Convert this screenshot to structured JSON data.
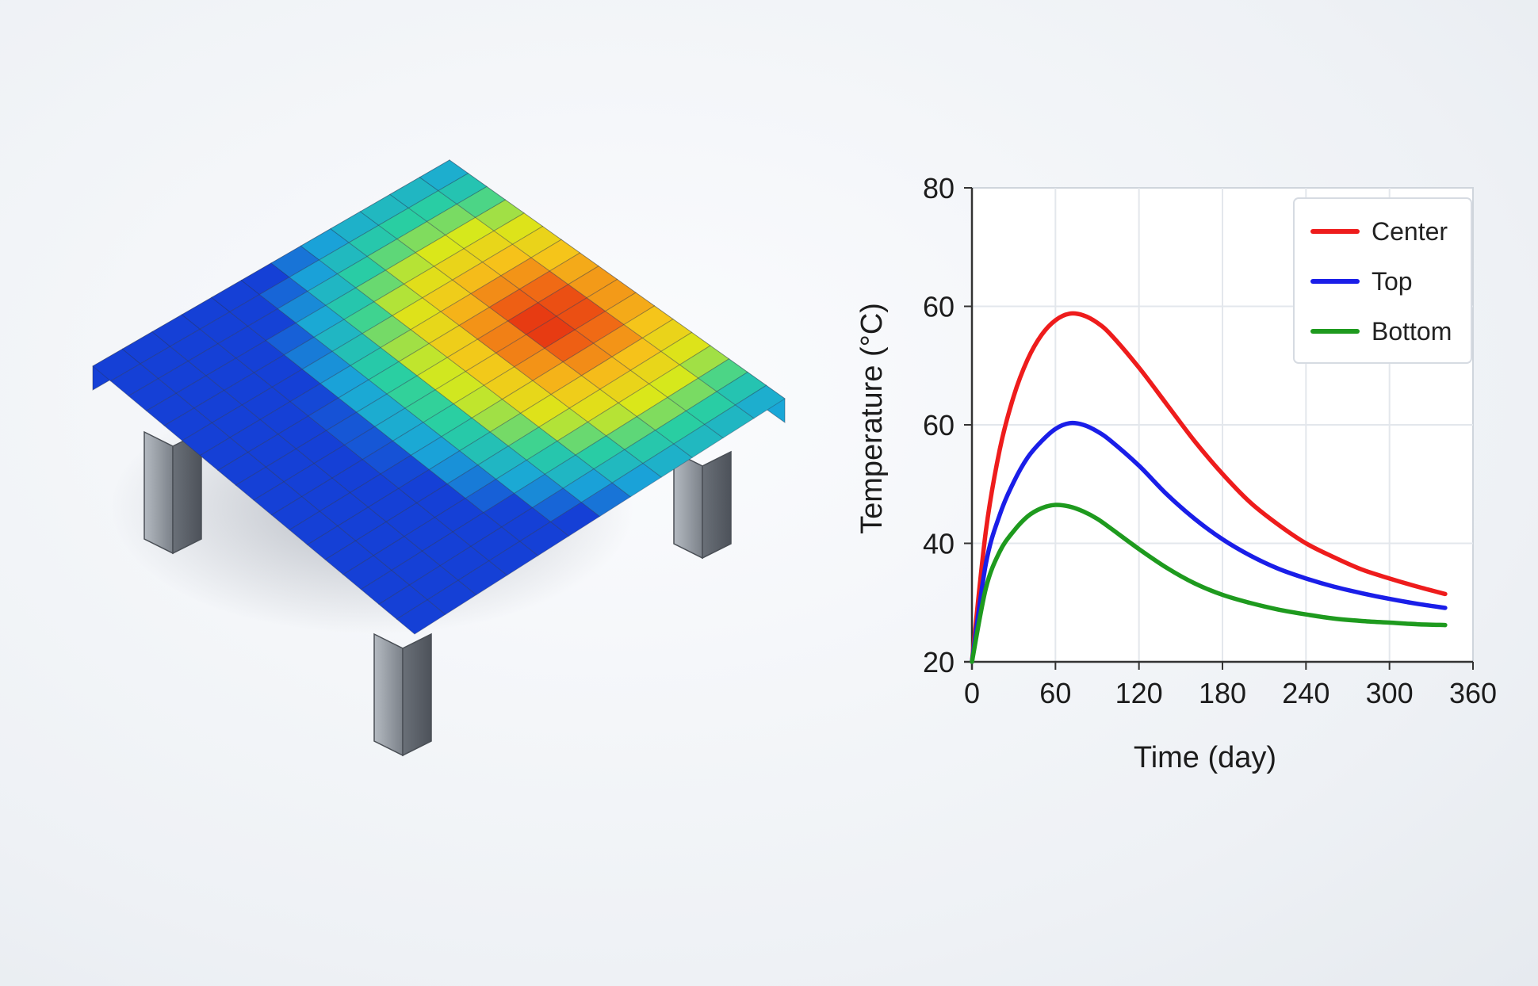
{
  "model": {
    "heat_grid": {
      "rows": 12,
      "cols": 18,
      "hot_spot": {
        "row": 0.82,
        "col": 0.5
      },
      "colormap": [
        "#1540d6",
        "#1aa6d8",
        "#2ad0a0",
        "#d9e81a",
        "#f6c41a",
        "#f06a15",
        "#e01a10"
      ]
    },
    "colors": {
      "leg": "#8e959d",
      "leg_dark": "#5e646b",
      "grid_line": "#2a3550"
    }
  },
  "chart_data": {
    "type": "line",
    "title": "",
    "xlabel": "Time (day)",
    "ylabel": "Temperature (°C)",
    "x_ticks": [
      "0",
      "60",
      "120",
      "180",
      "240",
      "300",
      "360"
    ],
    "y_ticks": [
      "20",
      "40",
      "60",
      "60",
      "80"
    ],
    "xlim": [
      0,
      360
    ],
    "grid": true,
    "legend_position": "top-right",
    "series": [
      {
        "name": "Center",
        "color": "#ee1c1c",
        "x": [
          0,
          10,
          20,
          30,
          40,
          50,
          60,
          70,
          80,
          90,
          100,
          120,
          140,
          160,
          180,
          200,
          220,
          240,
          260,
          280,
          300,
          320,
          340
        ],
        "y": [
          20,
          36,
          46,
          52.5,
          57,
          60,
          61.8,
          62.6,
          62.4,
          61.5,
          60,
          56,
          51.5,
          47,
          43,
          39.5,
          36.8,
          34.5,
          32.8,
          31.3,
          30.2,
          29.2,
          28.3
        ]
      },
      {
        "name": "Top",
        "color": "#1a1ee8",
        "x": [
          0,
          10,
          20,
          30,
          40,
          50,
          60,
          70,
          80,
          90,
          100,
          120,
          140,
          160,
          180,
          200,
          220,
          240,
          260,
          280,
          300,
          320,
          340
        ],
        "y": [
          20,
          32,
          38,
          42,
          45,
          47,
          48.5,
          49.2,
          49,
          48.2,
          47,
          44,
          40.5,
          37.5,
          35,
          33,
          31.4,
          30.2,
          29.2,
          28.4,
          27.7,
          27.1,
          26.6
        ]
      },
      {
        "name": "Bottom",
        "color": "#1e9a1e",
        "x": [
          0,
          10,
          20,
          30,
          40,
          50,
          60,
          70,
          80,
          90,
          100,
          120,
          140,
          160,
          180,
          200,
          220,
          240,
          260,
          280,
          300,
          320,
          340
        ],
        "y": [
          20,
          29,
          33.5,
          36,
          37.8,
          38.8,
          39.2,
          39,
          38.4,
          37.5,
          36.3,
          33.8,
          31.5,
          29.6,
          28.2,
          27.2,
          26.4,
          25.8,
          25.3,
          25,
          24.8,
          24.6,
          24.5
        ]
      }
    ]
  }
}
